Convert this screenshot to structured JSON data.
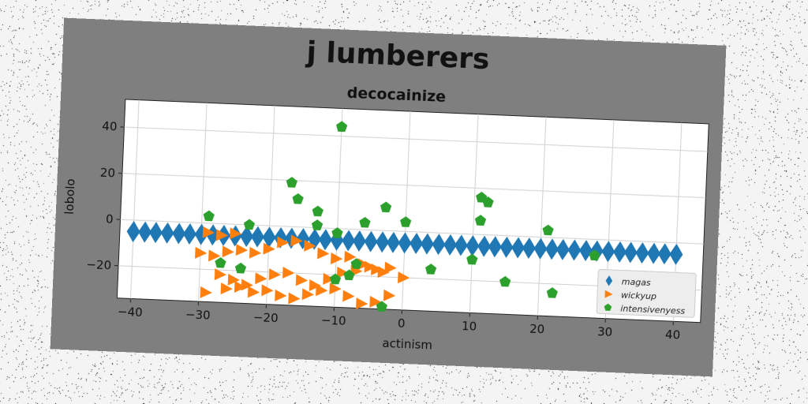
{
  "chart_data": {
    "type": "scatter",
    "title": "j lumberers",
    "subtitle": "decocainize",
    "xlabel": "actinism",
    "ylabel": "lobolo",
    "xlim": [
      -42,
      44
    ],
    "ylim": [
      -34,
      52
    ],
    "xticks": [
      -40,
      -30,
      -20,
      -10,
      0,
      10,
      20,
      30,
      40
    ],
    "yticks": [
      -20,
      0,
      20,
      40
    ],
    "grid": true,
    "legend_position": "lower-right",
    "series": [
      {
        "name": "magas",
        "marker": "diamond",
        "color": "#1f77b4",
        "x": [
          -40,
          -38.3,
          -36.7,
          -35,
          -33.3,
          -31.7,
          -30,
          -28.3,
          -26.7,
          -25,
          -23.3,
          -21.7,
          -20,
          -18.3,
          -16.7,
          -15,
          -13.3,
          -11.7,
          -10,
          -8.3,
          -6.7,
          -5,
          -3.3,
          -1.7,
          0,
          1.7,
          3.3,
          5,
          6.7,
          8.3,
          10,
          11.7,
          13.3,
          15,
          16.7,
          18.3,
          20,
          21.7,
          23.3,
          25,
          26.7,
          28.3,
          30,
          31.7,
          33.3,
          35,
          36.7,
          38.3,
          40
        ],
        "y": [
          -5,
          -5,
          -5,
          -5,
          -5,
          -5,
          -5,
          -5,
          -5,
          -5,
          -5,
          -5,
          -5,
          -5,
          -5,
          -5,
          -5,
          -5,
          -5,
          -5,
          -5,
          -5,
          -5,
          -5,
          -5,
          -5,
          -5,
          -5,
          -5,
          -5,
          -5,
          -5,
          -5,
          -5,
          -5,
          -5,
          -5,
          -5,
          -5,
          -5,
          -5,
          -5,
          -5,
          -5,
          -5,
          -5,
          -5,
          -5,
          -5
        ]
      },
      {
        "name": "wickyup",
        "marker": "triangle-right",
        "color": "#ff7f0e",
        "x": [
          -29,
          -27,
          -25,
          -30,
          -28,
          -26,
          -24,
          -22,
          -20,
          -18,
          -16,
          -14,
          -12,
          -10,
          -8,
          -6,
          -4,
          -2,
          0,
          -27,
          -25,
          -23,
          -21,
          -19,
          -17,
          -15,
          -13,
          -11,
          -9,
          -7,
          -5,
          -3,
          -29,
          -26,
          -24,
          -22,
          -20,
          -18,
          -16,
          -14,
          -12,
          -10,
          -8,
          -6,
          -4,
          -2
        ],
        "y": [
          -4,
          -5,
          -4,
          -13,
          -14,
          -12,
          -11,
          -12,
          -10,
          -7,
          -6,
          -8,
          -11,
          -13,
          -12,
          -15,
          -17,
          -16,
          -20,
          -22,
          -24,
          -26,
          -23,
          -21,
          -20,
          -23,
          -25,
          -22,
          -19,
          -18,
          -16,
          -18,
          -30,
          -28,
          -27,
          -29,
          -28,
          -30,
          -31,
          -29,
          -27,
          -26,
          -29,
          -32,
          -31,
          -28
        ]
      },
      {
        "name": "intensivenyess",
        "marker": "pentagon",
        "color": "#2ca02c",
        "x": [
          -10,
          -17,
          -16,
          -13,
          -13,
          -29,
          -23,
          -10,
          -6,
          -3,
          0,
          11,
          12,
          11,
          21,
          10,
          28,
          33,
          -27,
          -24,
          -10,
          -8,
          -7,
          -3,
          4,
          15,
          22
        ],
        "y": [
          44,
          19,
          12,
          7,
          1,
          3,
          0,
          -2,
          3,
          10,
          4,
          16,
          14,
          6,
          3,
          -11,
          -7,
          -24,
          -17,
          -19,
          -22,
          -20,
          -15,
          -33,
          -16,
          -20,
          -24
        ]
      }
    ]
  }
}
